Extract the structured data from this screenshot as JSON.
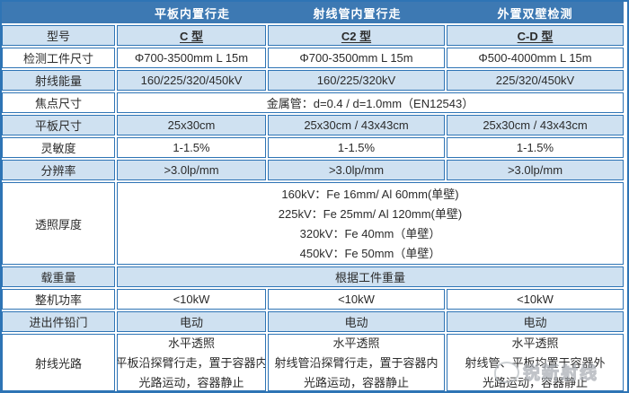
{
  "table": {
    "col_headers": [
      "平板内置行走",
      "射线管内置行走",
      "外置双壁检测"
    ],
    "rows": [
      {
        "label": "型号",
        "style": "model",
        "values": [
          "C 型",
          "C2 型",
          "C-D 型"
        ]
      },
      {
        "label": "检测工件尺寸",
        "values": [
          "Φ700-3500mm L 15m",
          "Φ700-3500mm L 15m",
          "Φ500-4000mm L 15m"
        ]
      },
      {
        "label": "射线能量",
        "values": [
          "160/225/320/450kV",
          "160/225/320kV",
          "225/320/450kV"
        ]
      },
      {
        "label": "焦点尺寸",
        "span": "金属管：d=0.4 / d=1.0mm（EN12543）"
      },
      {
        "label": "平板尺寸",
        "values": [
          "25x30cm",
          "25x30cm / 43x43cm",
          "25x30cm / 43x43cm"
        ]
      },
      {
        "label": "灵敏度",
        "values": [
          "1-1.5%",
          "1-1.5%",
          "1-1.5%"
        ]
      },
      {
        "label": "分辨率",
        "values": [
          ">3.0lp/mm",
          ">3.0lp/mm",
          ">3.0lp/mm"
        ]
      },
      {
        "label": "透照厚度",
        "span_lines": [
          "160kV：Fe 16mm/ Al 60mm(单壁)",
          "225kV：Fe 25mm/ Al 120mm(单壁)",
          "320kV：Fe 40mm（单壁）",
          "450kV：Fe 50mm（单壁）"
        ]
      },
      {
        "label": "载重量",
        "span": "根据工件重量"
      },
      {
        "label": "整机功率",
        "values": [
          "<10kW",
          "<10kW",
          "<10kW"
        ]
      },
      {
        "label": "进出件铅门",
        "values": [
          "电动",
          "电动",
          "电动"
        ]
      },
      {
        "label": "射线光路",
        "values_lines": [
          [
            "水平透照",
            "平板沿探臂行走，置于容器内",
            "光路运动，容器静止"
          ],
          [
            "水平透照",
            "射线管沿探臂行走，置于容器内",
            "光路运动，容器静止"
          ],
          [
            "水平透照",
            "射线管、平板均置于容器外",
            "光路运动，容器静止"
          ]
        ]
      }
    ]
  },
  "watermark": {
    "text": "锐新射线"
  },
  "colors": {
    "header_blue": "#3d79b3",
    "row_light_blue": "#cfe1f1",
    "border_blue": "#2e74b5",
    "label_text": "#1f3c5f",
    "value_text": "#2b2b2b",
    "header_text": "#ffffff",
    "watermark_gray": "#a8adb3"
  }
}
